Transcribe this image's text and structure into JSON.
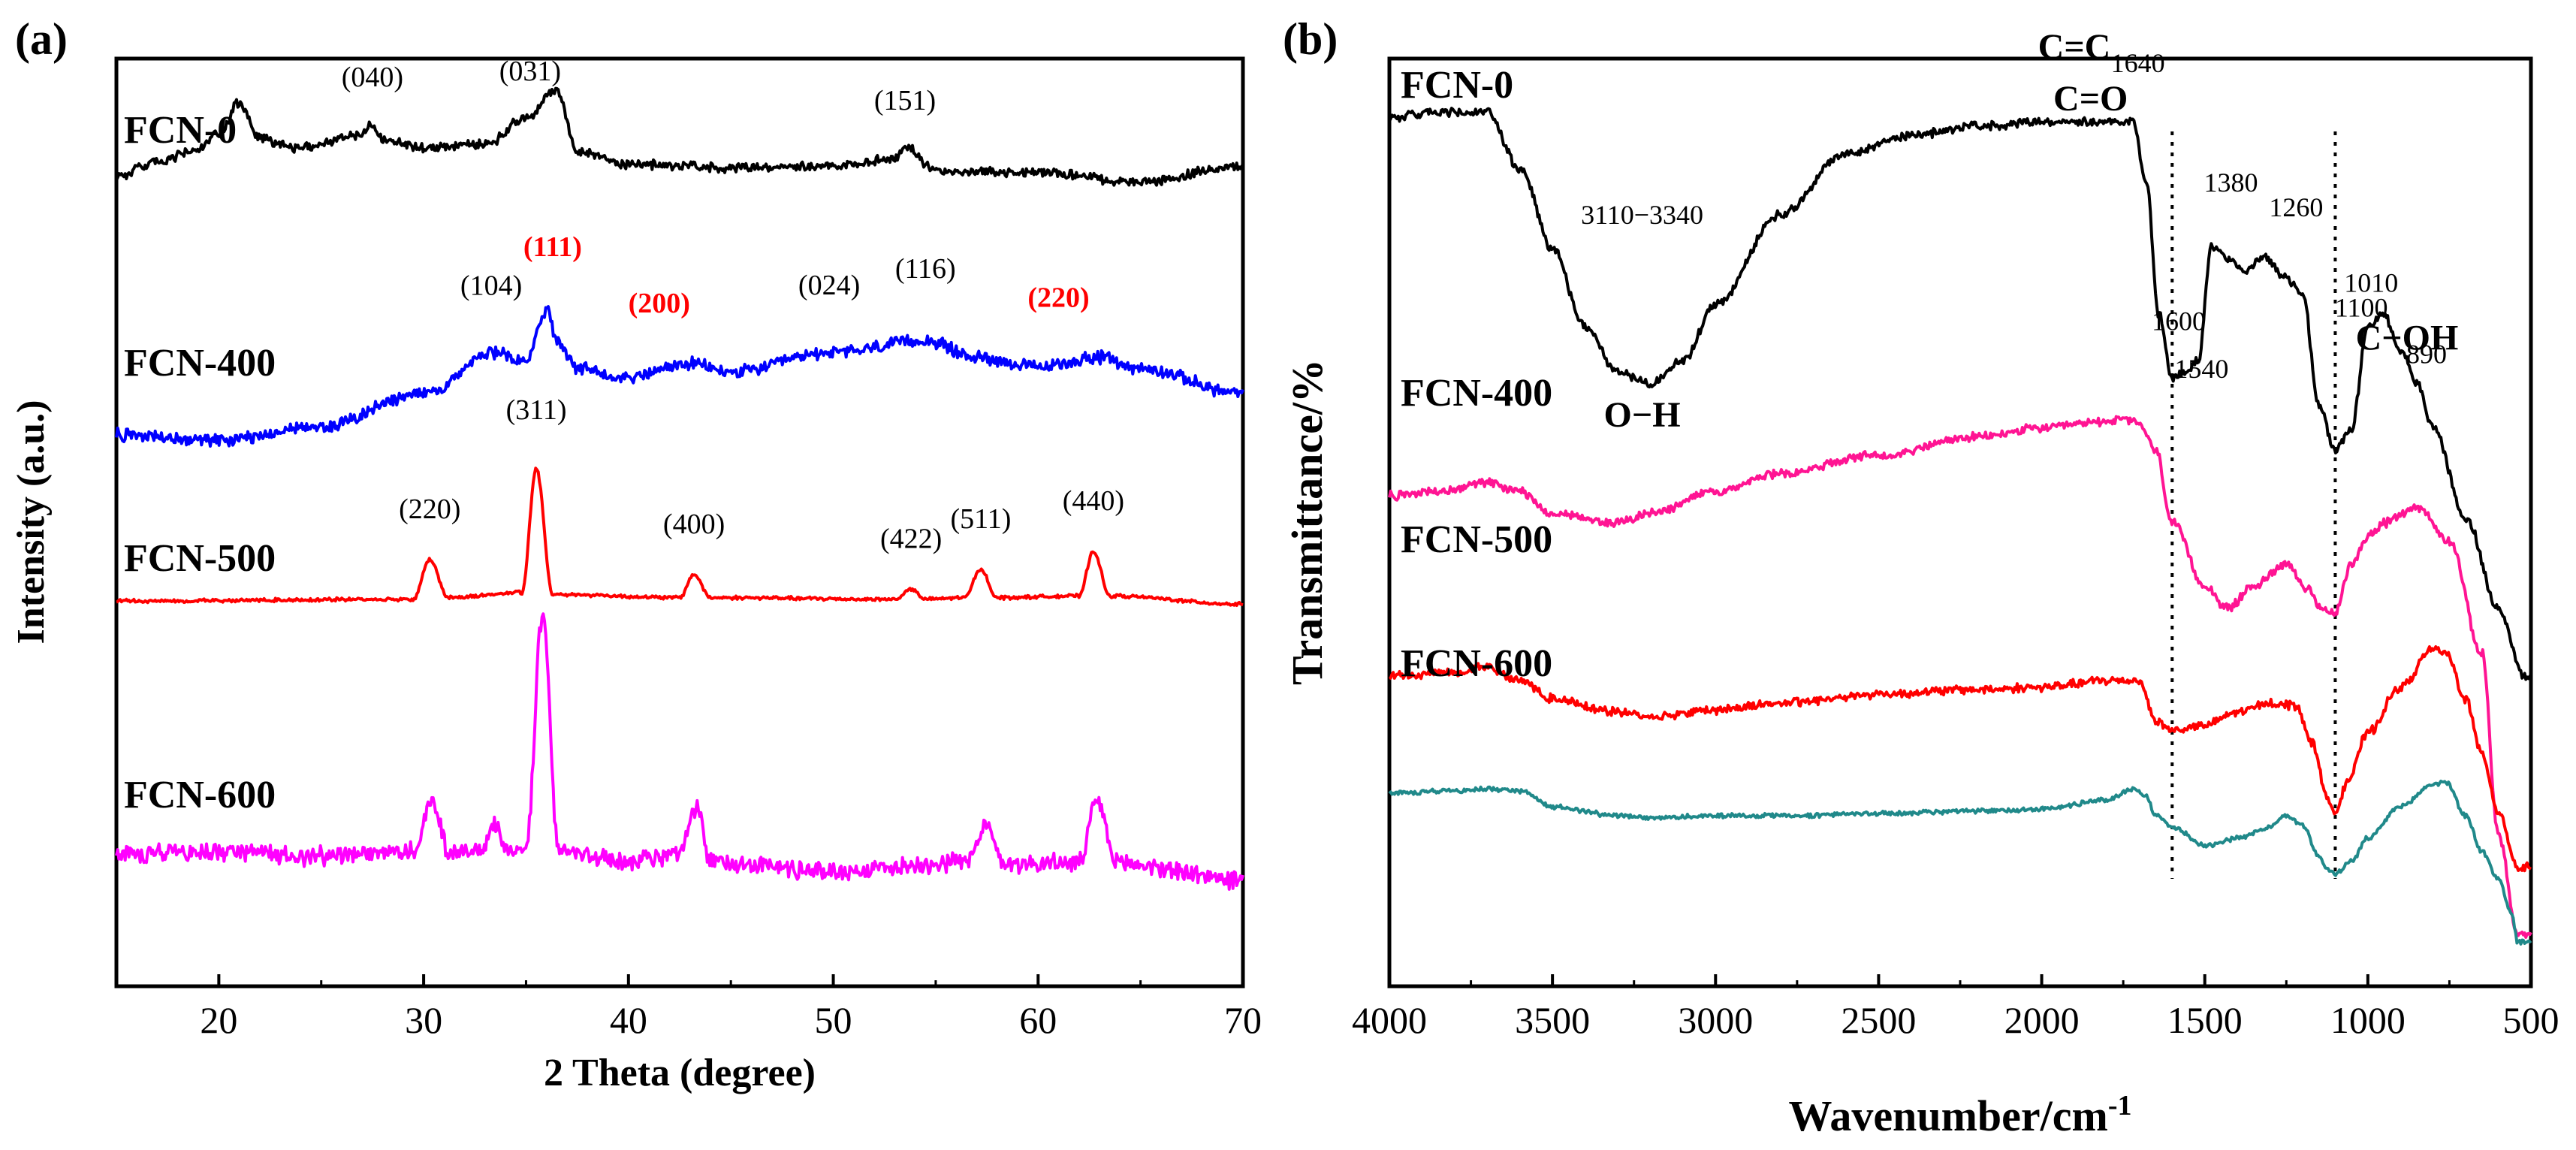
{
  "chart_data": [
    {
      "panel_label": "(a)",
      "type": "line",
      "xlabel": "2 Theta (degree)",
      "ylabel": "Intensity (a.u.)",
      "xlim": [
        15,
        70
      ],
      "xticks": [
        20,
        30,
        40,
        50,
        60,
        70
      ],
      "series": [
        {
          "name": "FCN-0",
          "color": "#000000",
          "noise": 0.022,
          "x": [
            15,
            17,
            19,
            20,
            21,
            22,
            24,
            27,
            27.5,
            28,
            30,
            33,
            35,
            36.5,
            37.5,
            40,
            45,
            50,
            53,
            53.5,
            55,
            60,
            65,
            70
          ],
          "y": [
            0.3,
            0.38,
            0.46,
            0.55,
            0.74,
            0.52,
            0.47,
            0.55,
            0.62,
            0.52,
            0.47,
            0.49,
            0.65,
            0.82,
            0.45,
            0.37,
            0.35,
            0.36,
            0.4,
            0.48,
            0.33,
            0.32,
            0.26,
            0.36
          ]
        },
        {
          "name": "FCN-400",
          "color": "#0000ff",
          "noise": 0.03,
          "x": [
            15,
            20,
            25,
            30,
            33.5,
            35,
            36,
            36.5,
            37.5,
            40,
            43,
            45,
            50,
            54.5,
            57,
            60,
            63,
            65,
            70
          ],
          "y": [
            0.05,
            0.02,
            0.1,
            0.3,
            0.55,
            0.5,
            0.8,
            0.62,
            0.45,
            0.4,
            0.48,
            0.43,
            0.55,
            0.62,
            0.52,
            0.46,
            0.52,
            0.45,
            0.3
          ]
        },
        {
          "name": "FCN-500",
          "color": "#ff0000",
          "noise": 0.008,
          "x": [
            15,
            29.5,
            30.3,
            31.2,
            34.8,
            35.5,
            36.3,
            42.5,
            43.2,
            44,
            53,
            53.8,
            54.5,
            56.4,
            57.2,
            58,
            62,
            62.7,
            63.5,
            70
          ],
          "y": [
            0.0,
            0.01,
            0.25,
            0.02,
            0.05,
            0.8,
            0.04,
            0.02,
            0.16,
            0.02,
            0.01,
            0.07,
            0.01,
            0.02,
            0.19,
            0.02,
            0.03,
            0.3,
            0.03,
            -0.02
          ]
        },
        {
          "name": "FCN-600",
          "color": "#ff00ff",
          "noise": 0.045,
          "x": [
            15,
            20,
            25,
            29.5,
            30.4,
            31.3,
            33,
            33.5,
            34,
            35,
            35.8,
            36.6,
            40,
            42.5,
            43.3,
            44,
            50,
            56.5,
            57.4,
            58.3,
            62,
            62.9,
            63.8,
            70
          ],
          "y": [
            0.1,
            0.12,
            0.09,
            0.12,
            0.42,
            0.1,
            0.15,
            0.28,
            0.12,
            0.15,
            1.55,
            0.12,
            0.06,
            0.1,
            0.38,
            0.06,
            0.0,
            0.06,
            0.28,
            0.05,
            0.05,
            0.42,
            0.05,
            -0.05
          ]
        }
      ],
      "peak_labels": [
        {
          "text": "(040)",
          "x": 27.5,
          "color": "#000000",
          "series": "FCN-0",
          "dy": 0.22
        },
        {
          "text": "(031)",
          "x": 35.2,
          "color": "#000000",
          "series": "FCN-0",
          "dy": 0.22
        },
        {
          "text": "(151)",
          "x": 53.5,
          "color": "#000000",
          "series": "FCN-0",
          "dy": 0.22
        },
        {
          "text": "(104)",
          "x": 33.3,
          "color": "#000000",
          "series": "FCN-400",
          "dy": 0.35
        },
        {
          "text": "(111)",
          "x": 36.3,
          "color": "#ff0000",
          "series": "FCN-400",
          "dy": 0.45
        },
        {
          "text": "(200)",
          "x": 41.5,
          "color": "#ff0000",
          "series": "FCN-400",
          "dy": 0.35
        },
        {
          "text": "(024)",
          "x": 49.8,
          "color": "#000000",
          "series": "FCN-400",
          "dy": 0.35
        },
        {
          "text": "(116)",
          "x": 54.5,
          "color": "#000000",
          "series": "FCN-400",
          "dy": 0.38
        },
        {
          "text": "(220)",
          "x": 61.0,
          "color": "#ff0000",
          "series": "FCN-400",
          "dy": 0.35
        },
        {
          "text": "(220)",
          "x": 30.3,
          "color": "#000000",
          "series": "FCN-500",
          "dy": 0.25
        },
        {
          "text": "(311)",
          "x": 35.5,
          "color": "#000000",
          "series": "FCN-500",
          "dy": 0.3
        },
        {
          "text": "(400)",
          "x": 43.2,
          "color": "#000000",
          "series": "FCN-500",
          "dy": 0.25
        },
        {
          "text": "(422)",
          "x": 53.8,
          "color": "#000000",
          "series": "FCN-500",
          "dy": 0.25
        },
        {
          "text": "(511)",
          "x": 57.2,
          "color": "#000000",
          "series": "FCN-500",
          "dy": 0.25
        },
        {
          "text": "(440)",
          "x": 62.7,
          "color": "#000000",
          "series": "FCN-500",
          "dy": 0.25
        }
      ]
    },
    {
      "panel_label": "(b)",
      "type": "line",
      "xlabel": "Wavenumber/cm",
      "xlabel_sup": "-1",
      "ylabel": "Transmittance/%",
      "xlim": [
        4000,
        500
      ],
      "xticks": [
        4000,
        3500,
        3000,
        2500,
        2000,
        1500,
        1000,
        500
      ],
      "series": [
        {
          "name": "FCN-0",
          "color": "#000000",
          "noise": 0.015,
          "x": [
            4000,
            3850,
            3700,
            3600,
            3500,
            3400,
            3300,
            3200,
            3100,
            3000,
            2800,
            2600,
            2400,
            2200,
            2000,
            1800,
            1720,
            1680,
            1640,
            1600,
            1560,
            1520,
            1480,
            1420,
            1380,
            1320,
            1260,
            1200,
            1150,
            1100,
            1050,
            1000,
            950,
            900,
            850,
            800,
            700,
            600,
            520
          ],
          "y": [
            3.68,
            3.7,
            3.7,
            3.45,
            3.1,
            2.75,
            2.55,
            2.5,
            2.6,
            2.85,
            3.25,
            3.52,
            3.6,
            3.64,
            3.66,
            3.66,
            3.66,
            3.4,
            2.8,
            2.52,
            2.55,
            2.6,
            3.1,
            3.05,
            3.0,
            3.06,
            2.98,
            2.9,
            2.4,
            2.2,
            2.3,
            2.75,
            2.8,
            2.65,
            2.5,
            2.3,
            1.9,
            1.5,
            1.2
          ]
        },
        {
          "name": "FCN-400",
          "color": "#ff1493",
          "noise": 0.015,
          "x": [
            4000,
            3850,
            3700,
            3600,
            3500,
            3300,
            3200,
            3000,
            2800,
            2500,
            2200,
            2000,
            1800,
            1750,
            1700,
            1650,
            1600,
            1500,
            1430,
            1350,
            1250,
            1180,
            1150,
            1100,
            1050,
            1000,
            950,
            850,
            750,
            650,
            600,
            540
          ],
          "y": [
            2.0,
            2.02,
            2.06,
            2.02,
            1.92,
            1.88,
            1.92,
            2.02,
            2.1,
            2.18,
            2.26,
            2.3,
            2.33,
            2.34,
            2.32,
            2.2,
            1.88,
            1.6,
            1.5,
            1.6,
            1.7,
            1.58,
            1.5,
            1.48,
            1.7,
            1.82,
            1.88,
            1.95,
            1.8,
            1.3,
            0.5,
            0.05
          ]
        },
        {
          "name": "FCN-500",
          "color": "#ff0000",
          "noise": 0.015,
          "x": [
            4000,
            3800,
            3700,
            3600,
            3500,
            3300,
            3200,
            3000,
            2800,
            2500,
            2200,
            2000,
            1800,
            1700,
            1650,
            1600,
            1500,
            1400,
            1300,
            1220,
            1170,
            1120,
            1100,
            1060,
            1000,
            900,
            800,
            760,
            700,
            650,
            600,
            540
          ],
          "y": [
            1.2,
            1.22,
            1.24,
            1.18,
            1.1,
            1.04,
            1.02,
            1.05,
            1.08,
            1.12,
            1.14,
            1.15,
            1.18,
            1.18,
            1.0,
            0.96,
            0.98,
            1.04,
            1.08,
            1.07,
            0.9,
            0.64,
            0.6,
            0.74,
            0.95,
            1.15,
            1.32,
            1.3,
            1.1,
            0.85,
            0.6,
            0.35
          ]
        },
        {
          "name": "FCN-600",
          "color": "#20898a",
          "noise": 0.008,
          "x": [
            4000,
            3800,
            3700,
            3600,
            3500,
            3300,
            3200,
            3000,
            2800,
            2500,
            2200,
            2000,
            1800,
            1720,
            1680,
            1650,
            1600,
            1500,
            1400,
            1300,
            1250,
            1200,
            1150,
            1120,
            1100,
            1050,
            1000,
            900,
            800,
            760,
            700,
            650,
            600,
            560,
            540
          ],
          "y": [
            0.68,
            0.69,
            0.7,
            0.69,
            0.62,
            0.58,
            0.57,
            0.58,
            0.58,
            0.59,
            0.6,
            0.61,
            0.65,
            0.7,
            0.67,
            0.58,
            0.53,
            0.45,
            0.48,
            0.53,
            0.58,
            0.54,
            0.4,
            0.34,
            0.32,
            0.38,
            0.48,
            0.62,
            0.72,
            0.73,
            0.58,
            0.42,
            0.3,
            0.15,
            0.02
          ]
        }
      ],
      "annotations": [
        {
          "text": "C=C",
          "x": 1900,
          "series": "FCN-0",
          "dy": 0.28
        },
        {
          "text": "1600",
          "x": 1580,
          "series": "FCN-0",
          "dy": 0.2
        },
        {
          "text": "1100",
          "x": 1020,
          "series": "FCN-0",
          "dy": 0.2
        },
        {
          "text": "C−OH",
          "x": 880,
          "series": "FCN-0",
          "dy": 0.05
        },
        {
          "text": "3110−3340",
          "x": 3225,
          "series": "FCN-0",
          "dy": 0.7
        },
        {
          "text": "O−H",
          "x": 3225,
          "series": "FCN-0",
          "dy": -0.2
        },
        {
          "text": "1380",
          "x": 1420,
          "series": "FCN-0",
          "dy": 0.3
        },
        {
          "text": "1260",
          "x": 1220,
          "series": "FCN-0",
          "dy": 0.32
        },
        {
          "text": "1640",
          "x": 1705,
          "series": "FCN-0",
          "dy": 0.3
        },
        {
          "text": "1010",
          "x": 990,
          "series": "FCN-0",
          "dy": 0.15
        },
        {
          "text": "890",
          "x": 820,
          "series": "FCN-0",
          "dy": 0.22
        },
        {
          "text": "C=O",
          "x": 1850,
          "series": "FCN-0",
          "dy": 0.05
        },
        {
          "text": "1540",
          "x": 1510,
          "series": "FCN-0",
          "dy": -0.15
        }
      ],
      "reference_lines": [
        1600,
        1100
      ]
    }
  ]
}
